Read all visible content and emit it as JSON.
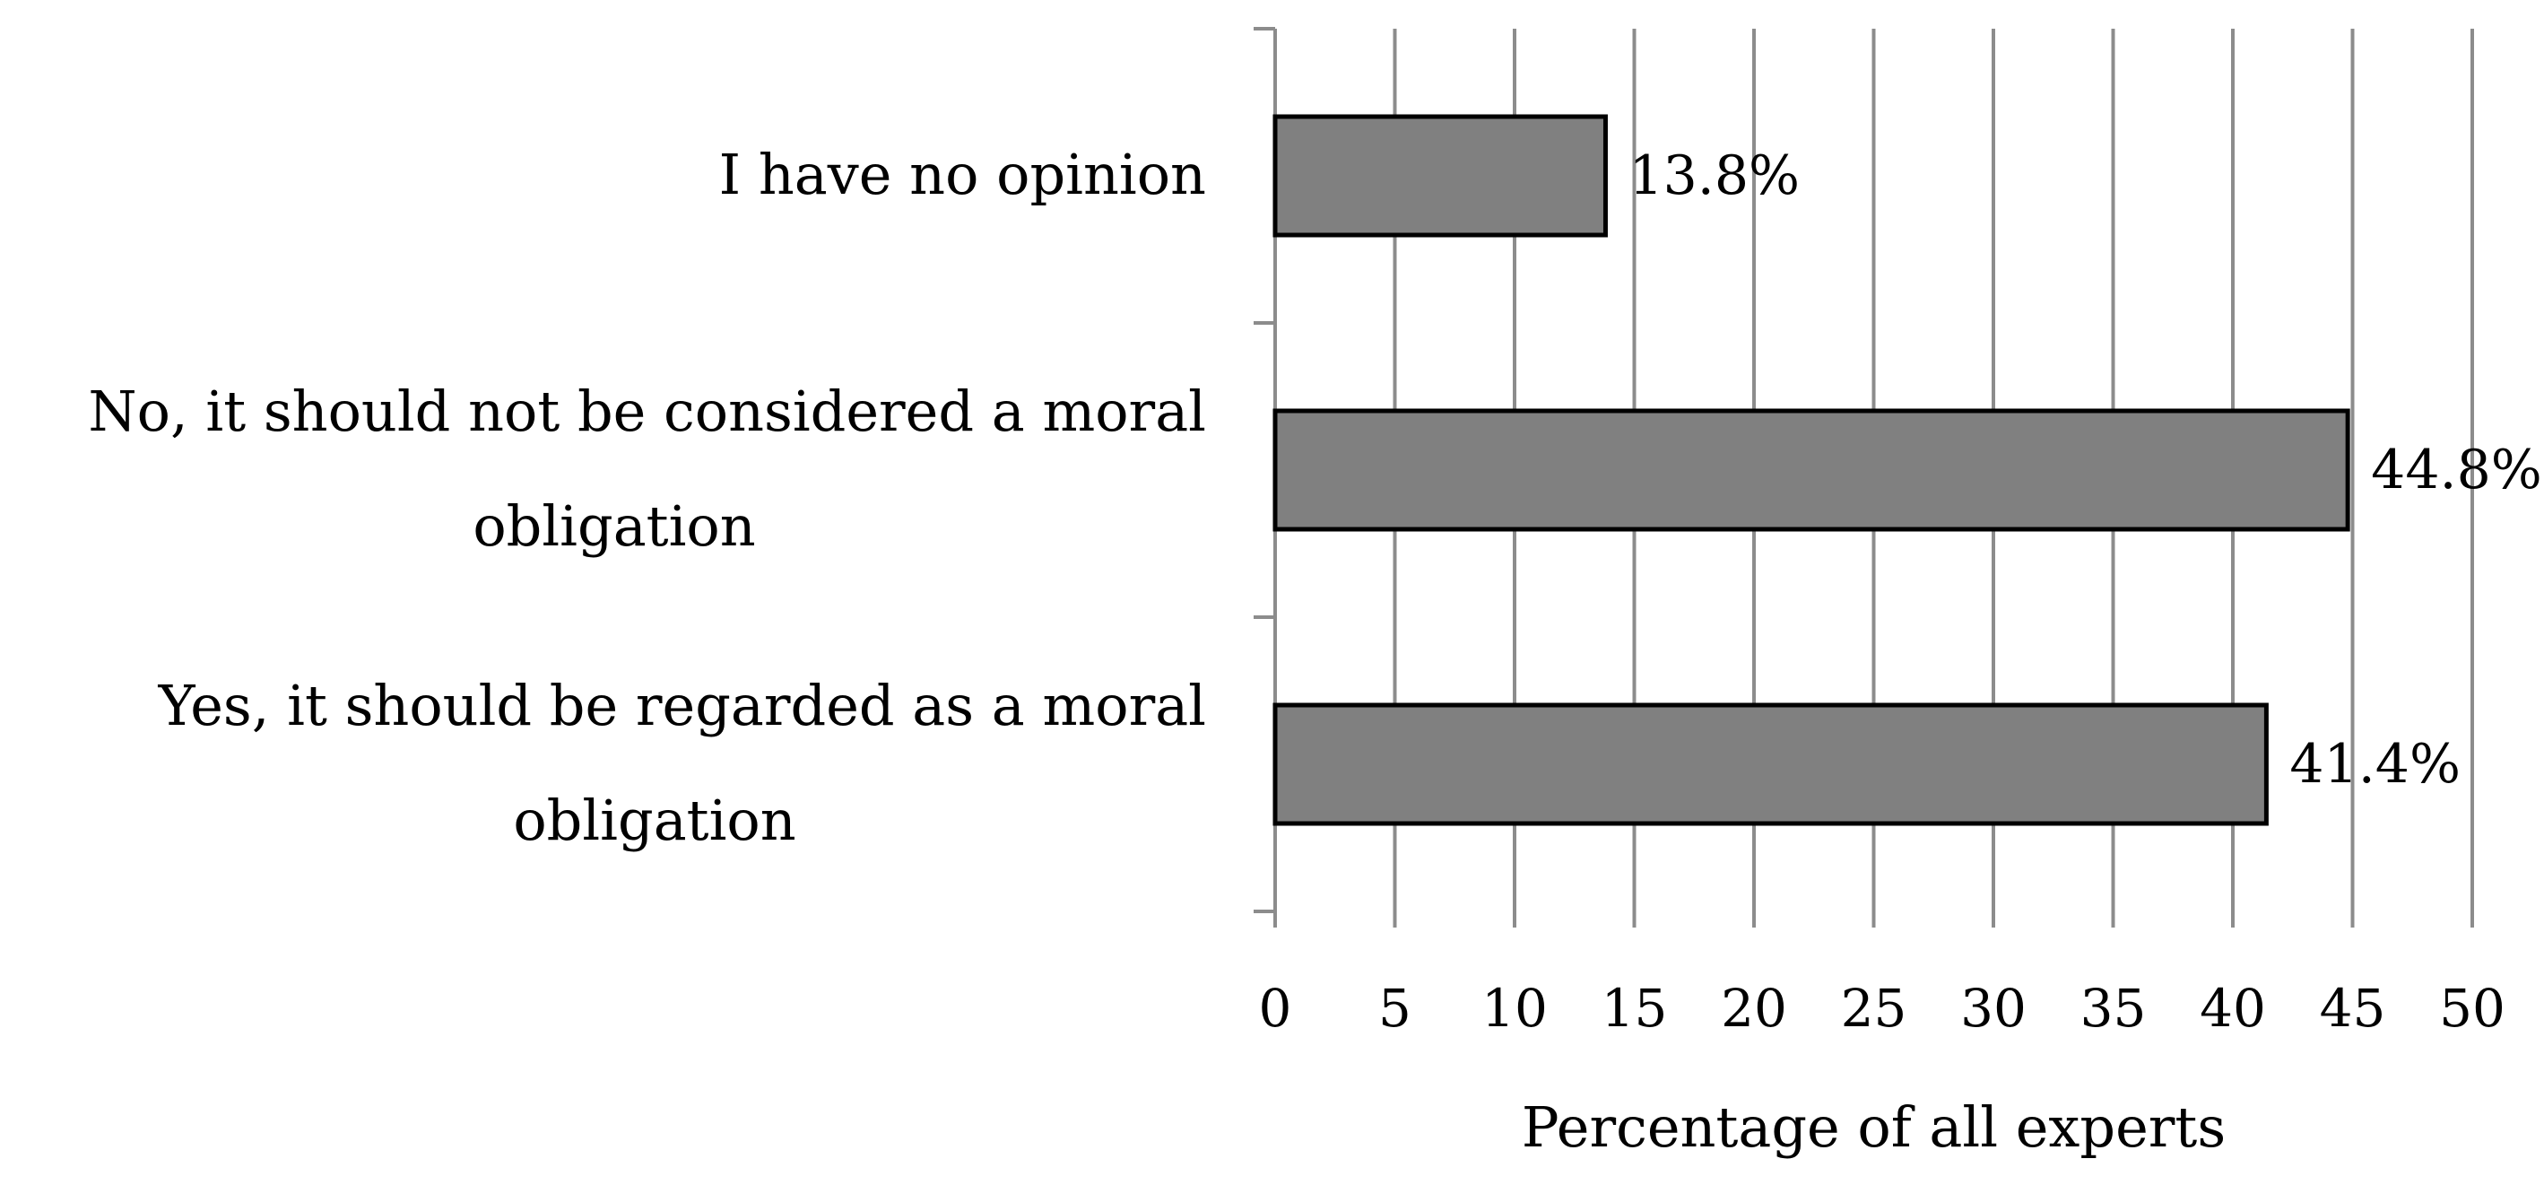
{
  "chart_data": {
    "type": "bar",
    "orientation": "horizontal",
    "categories": [
      "I have no opinion",
      "No, it should not be considered a moral obligation",
      "Yes, it should be regarded as a moral obligation"
    ],
    "category_lines": [
      [
        "I have no opinion"
      ],
      [
        "No, it should not be considered a moral",
        "obligation"
      ],
      [
        "Yes, it should be regarded as a moral",
        "obligation"
      ]
    ],
    "values": [
      13.8,
      44.8,
      41.4
    ],
    "data_labels": [
      "13.8%",
      "44.8%",
      "41.4%"
    ],
    "title": "",
    "xlabel": "Percentage of all experts",
    "ylabel": "",
    "xlim": [
      0,
      50
    ],
    "xticks": [
      "0",
      "5",
      "10",
      "15",
      "20",
      "25",
      "30",
      "35",
      "40",
      "45",
      "50"
    ],
    "grid": "vertical",
    "legend": "none",
    "colors": {
      "bar_fill": "#808080",
      "bar_stroke": "#000000",
      "grid": "#8c8c8c",
      "axis": "#8c8c8c"
    }
  }
}
